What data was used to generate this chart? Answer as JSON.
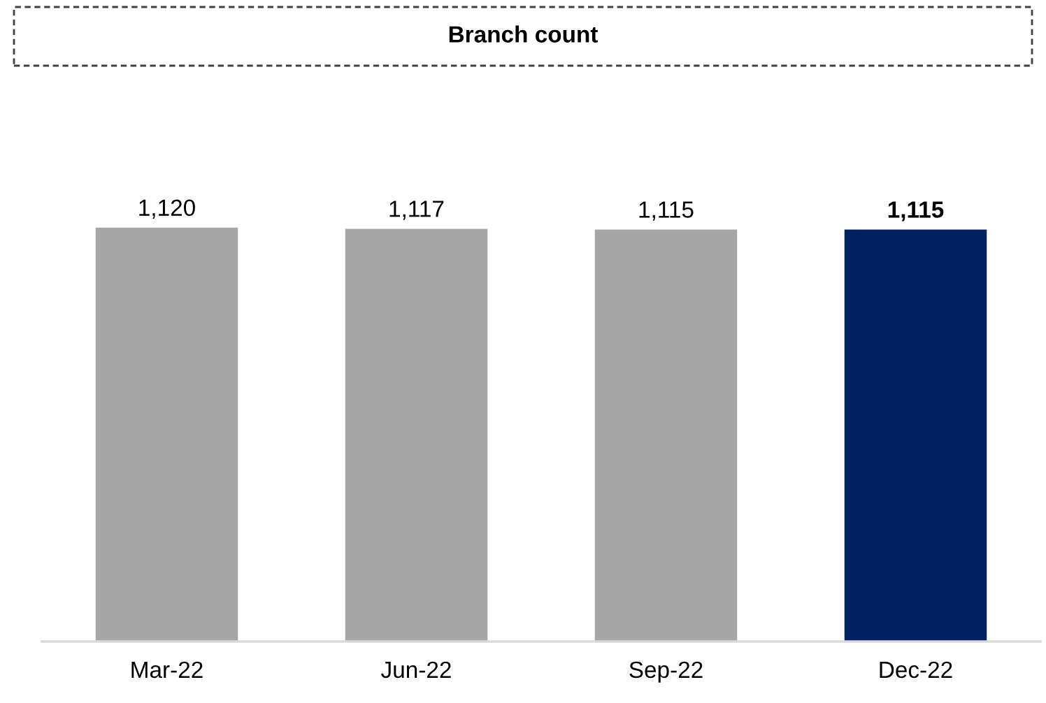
{
  "chart_data": {
    "type": "bar",
    "title": "Branch count",
    "categories": [
      "Mar-22",
      "Jun-22",
      "Sep-22",
      "Dec-22"
    ],
    "values": [
      1120,
      1117,
      1115,
      1115
    ],
    "value_labels": [
      "1,120",
      "1,117",
      "1,115",
      "1,115"
    ],
    "colors": [
      "#a6a6a6",
      "#a6a6a6",
      "#a6a6a6",
      "#002060"
    ],
    "tick_labels": "x",
    "grid": false,
    "legend": false
  }
}
